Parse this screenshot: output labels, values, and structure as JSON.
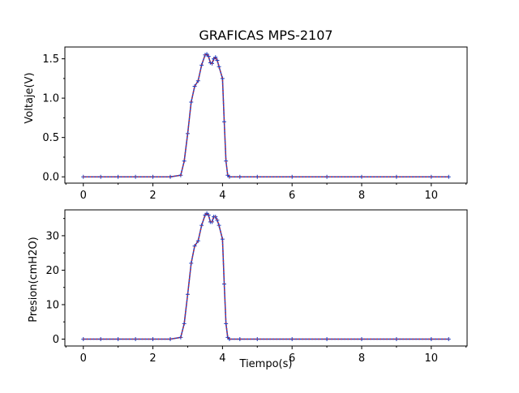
{
  "figure": {
    "title": "GRAFICAS MPS-2107",
    "xlabel": "Tiempo(s)"
  },
  "chart_data": [
    {
      "type": "line",
      "title": "GRAFICAS MPS-2107",
      "xlabel": "",
      "ylabel": "Voltaje(V)",
      "xlim": [
        -0.53,
        11.03
      ],
      "ylim": [
        -0.08,
        1.65
      ],
      "xticks": [
        0,
        2,
        4,
        6,
        8,
        10
      ],
      "xtick_labels": [
        "0",
        "2",
        "4",
        "6",
        "8",
        "10"
      ],
      "yticks": [
        0.0,
        0.5,
        1.0,
        1.5
      ],
      "ytick_labels": [
        "0.0",
        "0.5",
        "1.0",
        "1.5"
      ],
      "y_minor_ticks": [
        0.25,
        0.75,
        1.25
      ],
      "grid": false,
      "series": [
        {
          "color": "#1f3fbf",
          "style": "solid-with-markers",
          "x": [
            0,
            0.5,
            1,
            1.5,
            2,
            2.5,
            2.8,
            2.9,
            3.0,
            3.1,
            3.2,
            3.3,
            3.4,
            3.5,
            3.55,
            3.6,
            3.65,
            3.7,
            3.75,
            3.8,
            3.85,
            3.9,
            4.0,
            4.05,
            4.1,
            4.15,
            4.2,
            4.5,
            5,
            6,
            7,
            8,
            9,
            10,
            10.5
          ],
          "y": [
            0,
            0,
            0,
            0,
            0,
            0,
            0.02,
            0.2,
            0.55,
            0.95,
            1.15,
            1.22,
            1.42,
            1.55,
            1.56,
            1.53,
            1.45,
            1.44,
            1.5,
            1.52,
            1.48,
            1.4,
            1.25,
            0.7,
            0.2,
            0.02,
            0,
            0,
            0,
            0,
            0,
            0,
            0,
            0,
            0
          ]
        },
        {
          "color": "#d62728",
          "style": "dotted",
          "x": [
            0,
            0.5,
            1,
            1.5,
            2,
            2.5,
            2.8,
            2.9,
            3.0,
            3.1,
            3.2,
            3.3,
            3.4,
            3.5,
            3.55,
            3.6,
            3.65,
            3.7,
            3.75,
            3.8,
            3.85,
            3.9,
            4.0,
            4.05,
            4.1,
            4.15,
            4.2,
            4.5,
            5,
            6,
            7,
            8,
            9,
            10,
            10.5
          ],
          "y": [
            0,
            0,
            0,
            0,
            0,
            0,
            0.02,
            0.2,
            0.55,
            0.95,
            1.15,
            1.22,
            1.42,
            1.55,
            1.56,
            1.53,
            1.45,
            1.44,
            1.5,
            1.52,
            1.48,
            1.4,
            1.25,
            0.7,
            0.2,
            0.02,
            0,
            0,
            0,
            0,
            0,
            0,
            0,
            0,
            0
          ]
        }
      ]
    },
    {
      "type": "line",
      "title": "",
      "xlabel": "Tiempo(s)",
      "ylabel": "Presion(cmH2O)",
      "xlim": [
        -0.53,
        11.03
      ],
      "ylim": [
        -2,
        37.5
      ],
      "xticks": [
        0,
        2,
        4,
        6,
        8,
        10
      ],
      "xtick_labels": [
        "0",
        "2",
        "4",
        "6",
        "8",
        "10"
      ],
      "yticks": [
        0,
        10,
        20,
        30
      ],
      "ytick_labels": [
        "0",
        "10",
        "20",
        "30"
      ],
      "y_minor_ticks": [
        5,
        15,
        25,
        35
      ],
      "grid": false,
      "series": [
        {
          "color": "#1f3fbf",
          "style": "solid-with-markers",
          "x": [
            0,
            0.5,
            1,
            1.5,
            2,
            2.5,
            2.8,
            2.9,
            3.0,
            3.1,
            3.2,
            3.3,
            3.4,
            3.5,
            3.55,
            3.6,
            3.65,
            3.7,
            3.75,
            3.8,
            3.85,
            3.9,
            4.0,
            4.05,
            4.1,
            4.15,
            4.2,
            4.5,
            5,
            6,
            7,
            8,
            9,
            10,
            10.5
          ],
          "y": [
            0,
            0,
            0,
            0,
            0,
            0,
            0.5,
            4.5,
            13,
            22,
            27,
            28.5,
            33,
            36,
            36.5,
            36,
            34,
            34,
            35.5,
            35.5,
            34.5,
            33,
            29,
            16,
            4.5,
            0.5,
            0,
            0,
            0,
            0,
            0,
            0,
            0,
            0,
            0
          ]
        },
        {
          "color": "#d62728",
          "style": "dotted",
          "x": [
            0,
            0.5,
            1,
            1.5,
            2,
            2.5,
            2.8,
            2.9,
            3.0,
            3.1,
            3.2,
            3.3,
            3.4,
            3.5,
            3.55,
            3.6,
            3.65,
            3.7,
            3.75,
            3.8,
            3.85,
            3.9,
            4.0,
            4.05,
            4.1,
            4.15,
            4.2,
            4.5,
            5,
            6,
            7,
            8,
            9,
            10,
            10.5
          ],
          "y": [
            0,
            0,
            0,
            0,
            0,
            0,
            0.5,
            4.5,
            13,
            22,
            27,
            28.5,
            33,
            36,
            36.5,
            36,
            34,
            34,
            35.5,
            35.5,
            34.5,
            33,
            29,
            16,
            4.5,
            0.5,
            0,
            0,
            0,
            0,
            0,
            0,
            0,
            0,
            0
          ]
        }
      ]
    }
  ]
}
